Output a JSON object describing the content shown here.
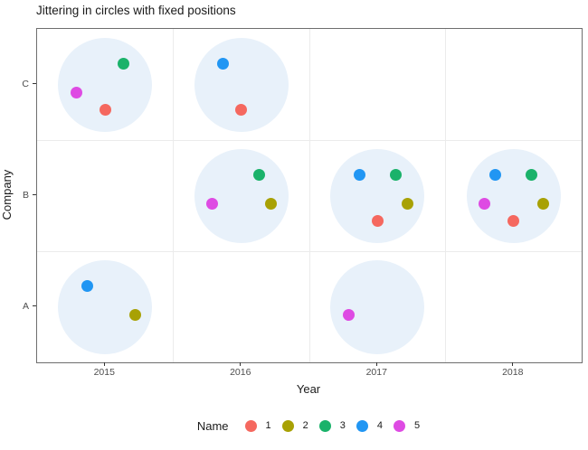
{
  "chart_data": {
    "type": "scatter",
    "title": "Jittering in circles with fixed positions",
    "xlabel": "Year",
    "ylabel": "Company",
    "x_ticks": [
      "2015",
      "2016",
      "2017",
      "2018"
    ],
    "y_ticks_top_to_bottom": [
      "C",
      "B",
      "A"
    ],
    "legend": {
      "title": "Name",
      "entries": [
        {
          "label": "1",
          "color": "#F5685F"
        },
        {
          "label": "2",
          "color": "#A8A104"
        },
        {
          "label": "3",
          "color": "#1AB26A"
        },
        {
          "label": "4",
          "color": "#2196F3"
        },
        {
          "label": "5",
          "color": "#DE4BE3"
        }
      ]
    },
    "bubble": {
      "fill": "#E8F1FA",
      "radius": 52
    },
    "point_offsets": {
      "1": [
        0,
        28
      ],
      "2": [
        33,
        9
      ],
      "3": [
        20,
        -23
      ],
      "4": [
        -20,
        -23
      ],
      "5": [
        -32,
        9
      ]
    },
    "groups": [
      {
        "year": "2015",
        "company": "C",
        "names": [
          "1",
          "3",
          "5"
        ]
      },
      {
        "year": "2016",
        "company": "C",
        "names": [
          "1",
          "4"
        ]
      },
      {
        "year": "2016",
        "company": "B",
        "names": [
          "2",
          "3",
          "5"
        ]
      },
      {
        "year": "2017",
        "company": "B",
        "names": [
          "1",
          "2",
          "3",
          "4"
        ]
      },
      {
        "year": "2018",
        "company": "B",
        "names": [
          "1",
          "2",
          "3",
          "4",
          "5"
        ]
      },
      {
        "year": "2015",
        "company": "A",
        "names": [
          "2",
          "4"
        ]
      },
      {
        "year": "2017",
        "company": "A",
        "names": [
          "5"
        ]
      }
    ],
    "colors": {
      "panel_border": "#6e6e6e",
      "gridline": "#ebebeb",
      "tick_label": "#4d4d4d"
    }
  }
}
